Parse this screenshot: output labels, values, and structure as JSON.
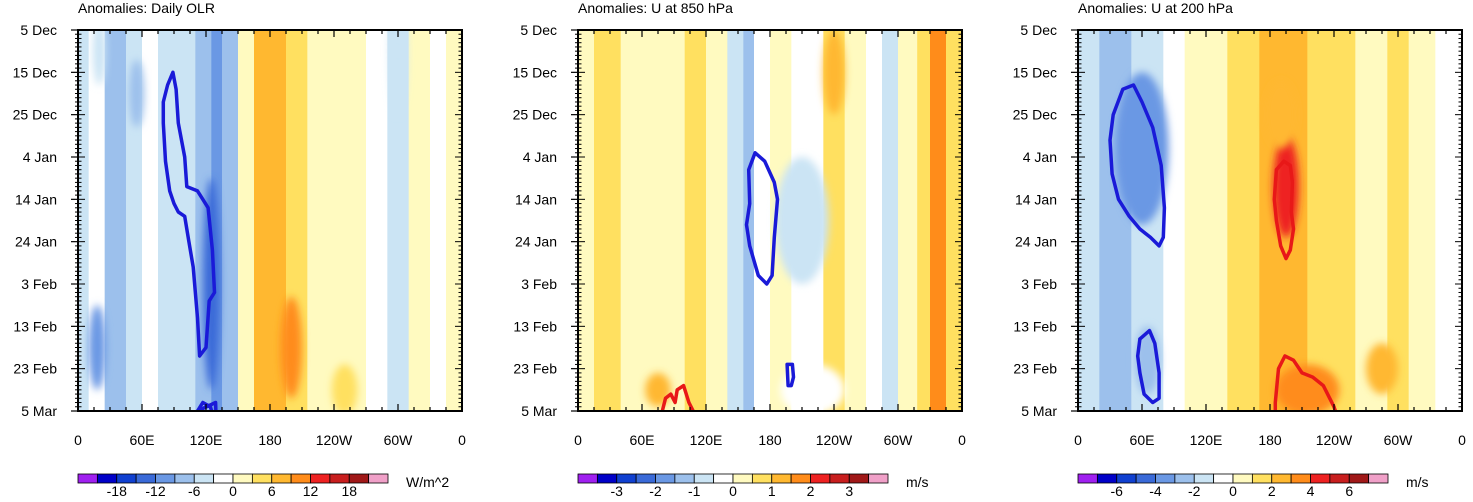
{
  "chart_data": [
    {
      "type": "heatmap",
      "title": "Anomalies: Daily OLR",
      "x_tick_labels": [
        "0",
        "60E",
        "120E",
        "180",
        "120W",
        "60W",
        "0"
      ],
      "x_values_deg": [
        0,
        60,
        120,
        180,
        240,
        300,
        360
      ],
      "y_tick_labels": [
        "5 Dec",
        "15 Dec",
        "25 Dec",
        "4 Jan",
        "14 Jan",
        "24 Jan",
        "3 Feb",
        "13 Feb",
        "23 Feb",
        "5 Mar"
      ],
      "colorbar": {
        "unit": "W/m^2",
        "labels": [
          "-18",
          "-12",
          "-6",
          "0",
          "6",
          "12",
          "18"
        ],
        "levels": [
          -21,
          -18,
          -15,
          -12,
          -9,
          -6,
          -3,
          0,
          3,
          6,
          9,
          12,
          15,
          18,
          21
        ],
        "colors": [
          "#a020f0",
          "#0000c8",
          "#1040d0",
          "#3a6ad8",
          "#6a98e4",
          "#9cc0ec",
          "#cbe4f4",
          "#ffffff",
          "#fffac0",
          "#ffe060",
          "#ffb830",
          "#ff8c1a",
          "#ee2222",
          "#c81e1e",
          "#a01818",
          "#f0a0c8"
        ]
      },
      "bands": [
        {
          "x0": 0,
          "x1": 10,
          "value": -5
        },
        {
          "x0": 10,
          "x1": 25,
          "value": -2
        },
        {
          "x0": 25,
          "x1": 45,
          "value": -7
        },
        {
          "x0": 45,
          "x1": 60,
          "value": -4
        },
        {
          "x0": 60,
          "x1": 75,
          "value": -1
        },
        {
          "x0": 75,
          "x1": 95,
          "value": -5
        },
        {
          "x0": 95,
          "x1": 110,
          "value": -6
        },
        {
          "x0": 110,
          "x1": 125,
          "value": -8
        },
        {
          "x0": 125,
          "x1": 135,
          "value": -12
        },
        {
          "x0": 135,
          "x1": 150,
          "value": -7
        },
        {
          "x0": 150,
          "x1": 165,
          "value": 0
        },
        {
          "x0": 165,
          "x1": 195,
          "value": 7
        },
        {
          "x0": 195,
          "x1": 215,
          "value": 4
        },
        {
          "x0": 215,
          "x1": 245,
          "value": 2
        },
        {
          "x0": 245,
          "x1": 270,
          "value": 1
        },
        {
          "x0": 270,
          "x1": 290,
          "value": -2
        },
        {
          "x0": 290,
          "x1": 310,
          "value": -4
        },
        {
          "x0": 310,
          "x1": 330,
          "value": 1
        },
        {
          "x0": 330,
          "x1": 345,
          "value": -1
        },
        {
          "x0": 345,
          "x1": 360,
          "value": 2
        }
      ],
      "blobs": [
        {
          "x": 18,
          "day": 75,
          "rx": 8,
          "rday": 10,
          "value": -10
        },
        {
          "x": 20,
          "day": 5,
          "rx": 6,
          "rday": 8,
          "value": -5
        },
        {
          "x": 55,
          "day": 15,
          "rx": 7,
          "rday": 8,
          "value": -9
        },
        {
          "x": 125,
          "day": 60,
          "rx": 8,
          "rday": 25,
          "value": -14
        },
        {
          "x": 200,
          "day": 75,
          "rx": 10,
          "rday": 12,
          "value": 10
        },
        {
          "x": 300,
          "day": 5,
          "rx": 8,
          "rday": 15,
          "value": -6
        },
        {
          "x": 250,
          "day": 85,
          "rx": 12,
          "rday": 6,
          "value": 4
        }
      ],
      "contours": [
        {
          "sign": "negative",
          "path": [
            [
              80,
              17
            ],
            [
              84,
              13
            ],
            [
              89,
              10
            ],
            [
              92,
              14
            ],
            [
              94,
              22
            ],
            [
              100,
              30
            ],
            [
              102,
              37
            ],
            [
              112,
              38
            ],
            [
              117,
              40
            ],
            [
              122,
              42
            ],
            [
              126,
              52
            ],
            [
              128,
              62
            ],
            [
              123,
              64
            ],
            [
              120,
              75
            ],
            [
              114,
              77
            ],
            [
              112,
              68
            ],
            [
              108,
              56
            ],
            [
              104,
              50
            ],
            [
              100,
              44
            ],
            [
              94,
              43
            ],
            [
              90,
              41
            ],
            [
              86,
              38
            ],
            [
              82,
              31
            ],
            [
              80,
              22
            ],
            [
              80,
              17
            ]
          ]
        },
        {
          "sign": "negative",
          "path": [
            [
              112,
              90
            ],
            [
              117,
              88
            ],
            [
              124,
              89
            ],
            [
              128,
              92
            ],
            [
              130,
              98
            ],
            [
              131,
              104
            ],
            [
              129,
              88
            ],
            [
              112,
              90
            ],
            [
              113,
              104
            ],
            [
              112,
              90
            ]
          ]
        }
      ]
    },
    {
      "type": "heatmap",
      "title": "Anomalies: U at 850 hPa",
      "x_tick_labels": [
        "0",
        "60E",
        "120E",
        "180",
        "120W",
        "60W",
        "0"
      ],
      "x_values_deg": [
        0,
        60,
        120,
        180,
        240,
        300,
        360
      ],
      "y_tick_labels": [
        "5 Dec",
        "15 Dec",
        "25 Dec",
        "4 Jan",
        "14 Jan",
        "24 Jan",
        "3 Feb",
        "13 Feb",
        "23 Feb",
        "5 Mar"
      ],
      "colorbar": {
        "unit": "m/s",
        "labels": [
          "-3",
          "-2",
          "-1",
          "0",
          "1",
          "2",
          "3"
        ],
        "levels": [
          -3.5,
          -3,
          -2.5,
          -2,
          -1.5,
          -1,
          -0.5,
          0,
          0.5,
          1,
          1.5,
          2,
          2.5,
          3,
          3.5
        ],
        "colors": [
          "#a020f0",
          "#0000c8",
          "#1040d0",
          "#3a6ad8",
          "#6a98e4",
          "#9cc0ec",
          "#cbe4f4",
          "#ffffff",
          "#fffac0",
          "#ffe060",
          "#ffb830",
          "#ff8c1a",
          "#ee2222",
          "#c81e1e",
          "#a01818",
          "#f0a0c8"
        ]
      },
      "bands": [
        {
          "x0": 0,
          "x1": 15,
          "value": 0.3
        },
        {
          "x0": 15,
          "x1": 40,
          "value": 0.8
        },
        {
          "x0": 40,
          "x1": 80,
          "value": 0.3
        },
        {
          "x0": 80,
          "x1": 100,
          "value": 0.2
        },
        {
          "x0": 100,
          "x1": 120,
          "value": 0.6
        },
        {
          "x0": 120,
          "x1": 140,
          "value": 0.2
        },
        {
          "x0": 140,
          "x1": 155,
          "value": -0.7
        },
        {
          "x0": 155,
          "x1": 165,
          "value": -1.2
        },
        {
          "x0": 165,
          "x1": 180,
          "value": -0.3
        },
        {
          "x0": 180,
          "x1": 200,
          "value": 0.2
        },
        {
          "x0": 200,
          "x1": 230,
          "value": -0.2
        },
        {
          "x0": 230,
          "x1": 250,
          "value": 0.6
        },
        {
          "x0": 250,
          "x1": 270,
          "value": 0.3
        },
        {
          "x0": 270,
          "x1": 285,
          "value": -0.3
        },
        {
          "x0": 285,
          "x1": 300,
          "value": -0.8
        },
        {
          "x0": 300,
          "x1": 318,
          "value": 0.3
        },
        {
          "x0": 318,
          "x1": 330,
          "value": 0.7
        },
        {
          "x0": 330,
          "x1": 345,
          "value": 1.6
        },
        {
          "x0": 345,
          "x1": 360,
          "value": 0.6
        }
      ],
      "blobs": [
        {
          "x": 210,
          "day": 45,
          "rx": 25,
          "rday": 15,
          "value": -0.8
        },
        {
          "x": 75,
          "day": 85,
          "rx": 12,
          "rday": 4,
          "value": 1.2
        },
        {
          "x": 220,
          "day": 85,
          "rx": 30,
          "rday": 6,
          "value": -0.3
        },
        {
          "x": 240,
          "day": 10,
          "rx": 10,
          "rday": 10,
          "value": 1.0
        }
      ],
      "contours": [
        {
          "sign": "negative",
          "path": [
            [
              161,
              41
            ],
            [
              160,
              33
            ],
            [
              166,
              29
            ],
            [
              175,
              31
            ],
            [
              184,
              36
            ],
            [
              187,
              40
            ],
            [
              184,
              49
            ],
            [
              182,
              58
            ],
            [
              177,
              60
            ],
            [
              169,
              58
            ],
            [
              161,
              51
            ],
            [
              158,
              46
            ],
            [
              161,
              41
            ]
          ]
        },
        {
          "sign": "negative",
          "path": [
            [
              196,
              79
            ],
            [
              201,
              79
            ],
            [
              202,
              82
            ],
            [
              200,
              84
            ],
            [
              197,
              84
            ],
            [
              196,
              79
            ]
          ]
        },
        {
          "sign": "positive",
          "path": [
            [
              79,
              90
            ],
            [
              82,
              87
            ],
            [
              87,
              86
            ],
            [
              91,
              88
            ],
            [
              93,
              85
            ],
            [
              99,
              84
            ],
            [
              104,
              88
            ],
            [
              108,
              90
            ]
          ]
        }
      ]
    },
    {
      "type": "heatmap",
      "title": "Anomalies: U at 200 hPa",
      "x_tick_labels": [
        "0",
        "60E",
        "120E",
        "180",
        "120W",
        "60W",
        "0"
      ],
      "x_values_deg": [
        0,
        60,
        120,
        180,
        240,
        300,
        360
      ],
      "y_tick_labels": [
        "5 Dec",
        "15 Dec",
        "25 Dec",
        "4 Jan",
        "14 Jan",
        "24 Jan",
        "3 Feb",
        "13 Feb",
        "23 Feb",
        "5 Mar"
      ],
      "colorbar": {
        "unit": "m/s",
        "labels": [
          "-6",
          "-4",
          "-2",
          "0",
          "2",
          "4",
          "6"
        ],
        "levels": [
          -7,
          -6,
          -5,
          -4,
          -3,
          -2,
          -1,
          0,
          1,
          2,
          3,
          4,
          5,
          6,
          7
        ],
        "colors": [
          "#a020f0",
          "#0000c8",
          "#1040d0",
          "#3a6ad8",
          "#6a98e4",
          "#9cc0ec",
          "#cbe4f4",
          "#ffffff",
          "#fffac0",
          "#ffe060",
          "#ffb830",
          "#ff8c1a",
          "#ee2222",
          "#c81e1e",
          "#a01818",
          "#f0a0c8"
        ]
      },
      "bands": [
        {
          "x0": 0,
          "x1": 20,
          "value": -1.5
        },
        {
          "x0": 20,
          "x1": 50,
          "value": -2.5
        },
        {
          "x0": 50,
          "x1": 80,
          "value": -1.8
        },
        {
          "x0": 80,
          "x1": 100,
          "value": -0.5
        },
        {
          "x0": 100,
          "x1": 140,
          "value": 0.3
        },
        {
          "x0": 140,
          "x1": 150,
          "value": 1.2
        },
        {
          "x0": 150,
          "x1": 170,
          "value": 1.8
        },
        {
          "x0": 170,
          "x1": 190,
          "value": 2.5
        },
        {
          "x0": 190,
          "x1": 215,
          "value": 2.0
        },
        {
          "x0": 215,
          "x1": 240,
          "value": 1.5
        },
        {
          "x0": 240,
          "x1": 260,
          "value": 1.0
        },
        {
          "x0": 260,
          "x1": 290,
          "value": 0.5
        },
        {
          "x0": 290,
          "x1": 310,
          "value": 1.2
        },
        {
          "x0": 310,
          "x1": 335,
          "value": 0.2
        },
        {
          "x0": 335,
          "x1": 360,
          "value": -0.3
        }
      ],
      "blobs": [
        {
          "x": 60,
          "day": 28,
          "rx": 25,
          "rday": 18,
          "value": -3.2
        },
        {
          "x": 65,
          "day": 78,
          "rx": 12,
          "rday": 8,
          "value": -2.8
        },
        {
          "x": 195,
          "day": 37,
          "rx": 12,
          "rday": 12,
          "value": 4.3
        },
        {
          "x": 215,
          "day": 85,
          "rx": 30,
          "rday": 6,
          "value": 3.4
        },
        {
          "x": 285,
          "day": 80,
          "rx": 15,
          "rday": 6,
          "value": 2.5
        },
        {
          "x": 190,
          "day": 20,
          "rx": 15,
          "rday": 8,
          "value": 2.8
        }
      ],
      "contours": [
        {
          "sign": "negative",
          "path": [
            [
              30,
              26
            ],
            [
              33,
              20
            ],
            [
              42,
              14
            ],
            [
              52,
              13
            ],
            [
              60,
              17
            ],
            [
              70,
              23
            ],
            [
              78,
              32
            ],
            [
              81,
              42
            ],
            [
              80,
              49
            ],
            [
              76,
              51
            ],
            [
              68,
              49
            ],
            [
              58,
              47
            ],
            [
              48,
              44
            ],
            [
              38,
              40
            ],
            [
              32,
              34
            ],
            [
              30,
              26
            ]
          ]
        },
        {
          "sign": "negative",
          "path": [
            [
              58,
              73
            ],
            [
              67,
              71
            ],
            [
              72,
              74
            ],
            [
              76,
              81
            ],
            [
              76,
              87
            ],
            [
              70,
              88
            ],
            [
              62,
              86
            ],
            [
              58,
              81
            ],
            [
              56,
              77
            ],
            [
              58,
              73
            ]
          ]
        },
        {
          "sign": "positive",
          "path": [
            [
              184,
              40
            ],
            [
              186,
              33
            ],
            [
              193,
              31
            ],
            [
              199,
              32
            ],
            [
              201,
              36
            ],
            [
              200,
              43
            ],
            [
              202,
              47
            ],
            [
              199,
              52
            ],
            [
              195,
              54
            ],
            [
              190,
              51
            ],
            [
              186,
              45
            ],
            [
              184,
              40
            ]
          ]
        },
        {
          "sign": "positive",
          "path": [
            [
              185,
              99
            ],
            [
              185,
              88
            ],
            [
              188,
              80
            ],
            [
              194,
              77
            ],
            [
              202,
              78
            ],
            [
              210,
              81
            ],
            [
              220,
              82
            ],
            [
              230,
              84
            ],
            [
              240,
              89
            ],
            [
              248,
              95
            ]
          ]
        }
      ]
    }
  ]
}
